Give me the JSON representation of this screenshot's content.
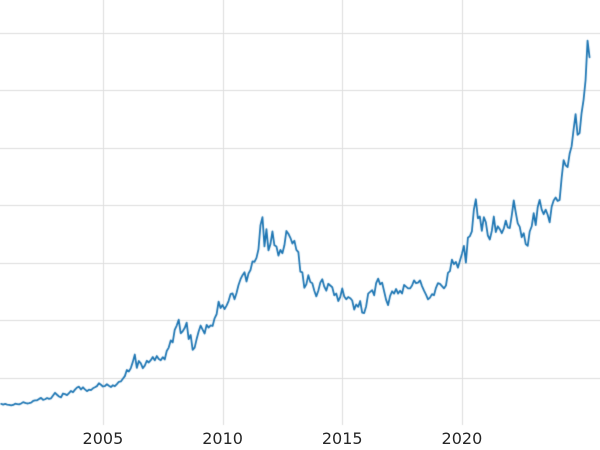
{
  "chart_data": {
    "type": "line",
    "title": "",
    "xlabel": "",
    "ylabel": "",
    "grid": true,
    "legend": null,
    "x_range": [
      2000.7,
      2025.77
    ],
    "y_range": [
      88,
      3784
    ],
    "x_ticks": [
      {
        "value": 2005,
        "label": "2005"
      },
      {
        "value": 2010,
        "label": "2010"
      },
      {
        "value": 2015,
        "label": "2015"
      },
      {
        "value": 2020,
        "label": "2020"
      }
    ],
    "y_gridline_values": [
      500,
      1000,
      1500,
      2000,
      2500,
      3000,
      3500
    ],
    "colors": {
      "background": "#ffffff",
      "grid": "#dedede",
      "line": "#1f77b4",
      "tick_label": "#262626"
    },
    "line_width": 1.8,
    "series": [
      {
        "name": "price",
        "x_start": 2000.75,
        "x_step": 0.0833333,
        "values": [
          272,
          266,
          271,
          266,
          262,
          258,
          262,
          273,
          270,
          267,
          275,
          287,
          281,
          275,
          278,
          283,
          297,
          302,
          303,
          315,
          324,
          306,
          312,
          323,
          315,
          320,
          344,
          368,
          351,
          336,
          328,
          362,
          356,
          348,
          366,
          384,
          373,
          396,
          414,
          421,
          397,
          416,
          398,
          382,
          395,
          391,
          407,
          416,
          426,
          451,
          438,
          423,
          427,
          442,
          429,
          418,
          434,
          425,
          443,
          464,
          467,
          490,
          513,
          566,
          553,
          583,
          637,
          701,
          584,
          645,
          624,
          582,
          604,
          647,
          632,
          652,
          679,
          650,
          688,
          662,
          651,
          678,
          658,
          731,
          761,
          823,
          806,
          915,
          953,
          1004,
          886,
          903,
          931,
          978,
          834,
          871,
          741,
          761,
          836,
          901,
          953,
          917,
          884,
          959,
          935,
          954,
          949,
          1016,
          1051,
          1161,
          1105,
          1131,
          1096,
          1126,
          1166,
          1226,
          1233,
          1181,
          1236,
          1306,
          1356,
          1391,
          1416,
          1336,
          1406,
          1436,
          1511,
          1506,
          1541,
          1616,
          1826,
          1896,
          1641,
          1791,
          1606,
          1661,
          1771,
          1651,
          1641,
          1561,
          1611,
          1581,
          1651,
          1776,
          1751,
          1716,
          1666,
          1691,
          1611,
          1591,
          1421,
          1416,
          1281,
          1311,
          1391,
          1331,
          1321,
          1256,
          1206,
          1256,
          1326,
          1356,
          1291,
          1256,
          1316,
          1301,
          1286,
          1216,
          1231,
          1166,
          1201,
          1276,
          1206,
          1181,
          1201,
          1191,
          1171,
          1091,
          1136,
          1116,
          1166,
          1066,
          1062,
          1121,
          1231,
          1246,
          1261,
          1216,
          1321,
          1361,
          1311,
          1326,
          1251,
          1176,
          1131,
          1211,
          1251,
          1231,
          1271,
          1231,
          1256,
          1231,
          1306,
          1291,
          1276,
          1276,
          1301,
          1346,
          1321,
          1326,
          1346,
          1296,
          1256,
          1221,
          1181,
          1196,
          1226,
          1216,
          1281,
          1321,
          1316,
          1296,
          1276,
          1301,
          1411,
          1426,
          1526,
          1486,
          1506,
          1456,
          1516,
          1576,
          1646,
          1500,
          1716,
          1731,
          1771,
          1961,
          2051,
          1886,
          1901,
          1776,
          1896,
          1851,
          1736,
          1701,
          1776,
          1901,
          1766,
          1816,
          1791,
          1756,
          1796,
          1866,
          1806,
          1801,
          1911,
          2041,
          1936,
          1841,
          1811,
          1721,
          1756,
          1661,
          1646,
          1771,
          1816,
          1931,
          1826,
          1981,
          2046,
          1961,
          1921,
          1961,
          1916,
          1851,
          1986,
          2041,
          2066,
          2036,
          2046,
          2236,
          2391,
          2346,
          2331,
          2446,
          2511,
          2656,
          2791,
          2611,
          2626,
          2801,
          2916,
          3086,
          3431,
          3286
        ]
      }
    ]
  }
}
